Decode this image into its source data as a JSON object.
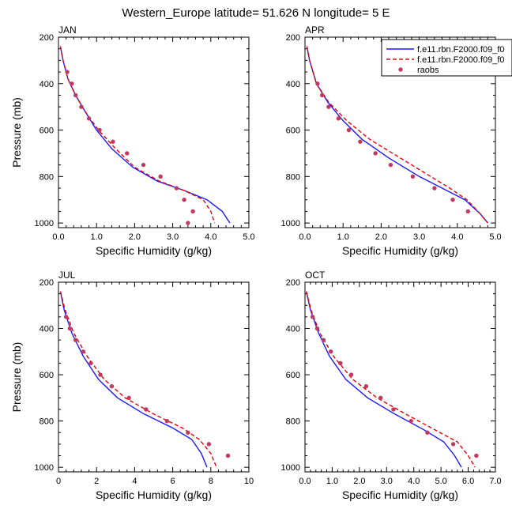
{
  "title": "Western_Europe  latitude= 51.626 N longitude= 5 E",
  "ylabel": "Pressure (mb)",
  "xlabel": "Specific Humidity (g/kg)",
  "legend": [
    {
      "name": "f.e11.rbn.F2000.f09_f0",
      "color": "#1a1aff",
      "style": "solid"
    },
    {
      "name": "f.e11.rbn.F2000.f09_f0",
      "color": "#e8000b",
      "style": "dashed"
    },
    {
      "name": "raobs",
      "color": "#c0395e",
      "style": "marker"
    }
  ],
  "chart_data": [
    {
      "type": "line",
      "panel": "JAN",
      "xlim": [
        0,
        5
      ],
      "xticks": [
        0.0,
        1.0,
        2.0,
        3.0,
        4.0,
        5.0
      ],
      "xtick_labels": [
        "0.0",
        "1.0",
        "2.0",
        "3.0",
        "4.0",
        "5.0"
      ],
      "ylim": [
        1020,
        200
      ],
      "yticks": [
        200,
        400,
        600,
        800,
        1000
      ],
      "series": [
        {
          "name": "model_solid",
          "x": [
            0.05,
            0.12,
            0.25,
            0.45,
            0.7,
            1.0,
            1.4,
            1.95,
            2.6,
            3.3,
            3.9,
            4.3,
            4.5
          ],
          "y": [
            240,
            300,
            380,
            450,
            520,
            600,
            680,
            760,
            820,
            860,
            900,
            950,
            1000
          ]
        },
        {
          "name": "model_dashed",
          "x": [
            0.05,
            0.12,
            0.25,
            0.45,
            0.7,
            1.05,
            1.5,
            2.0,
            2.65,
            3.3,
            3.8,
            4.0,
            4.1
          ],
          "y": [
            240,
            300,
            380,
            450,
            520,
            600,
            680,
            760,
            820,
            860,
            900,
            950,
            1000
          ]
        },
        {
          "name": "raobs",
          "x": [
            0.23,
            0.35,
            0.45,
            0.6,
            0.8,
            1.08,
            1.43,
            1.8,
            2.23,
            2.68,
            3.1,
            3.3,
            3.53,
            3.4
          ],
          "y": [
            350,
            400,
            450,
            500,
            550,
            600,
            650,
            700,
            750,
            800,
            850,
            900,
            950,
            1000
          ]
        }
      ]
    },
    {
      "type": "line",
      "panel": "APR",
      "xlim": [
        0,
        5
      ],
      "xticks": [
        0.0,
        1.0,
        2.0,
        3.0,
        4.0,
        5.0
      ],
      "xtick_labels": [
        "0.0",
        "1.0",
        "2.0",
        "3.0",
        "4.0",
        "5.0"
      ],
      "ylim": [
        1020,
        200
      ],
      "yticks": [
        200,
        400,
        600,
        800,
        1000
      ],
      "series": [
        {
          "name": "model_solid",
          "x": [
            0.05,
            0.12,
            0.3,
            0.6,
            1.0,
            1.5,
            2.2,
            3.0,
            3.6,
            4.2,
            4.6,
            4.8
          ],
          "y": [
            240,
            300,
            400,
            480,
            560,
            640,
            720,
            800,
            850,
            900,
            960,
            1000
          ]
        },
        {
          "name": "model_dashed",
          "x": [
            0.05,
            0.12,
            0.3,
            0.62,
            1.1,
            1.7,
            2.5,
            3.3,
            3.8,
            4.25,
            4.6,
            4.8
          ],
          "y": [
            240,
            300,
            400,
            480,
            560,
            640,
            720,
            800,
            850,
            900,
            960,
            1000
          ]
        },
        {
          "name": "raobs",
          "x": [
            0.33,
            0.45,
            0.62,
            0.88,
            1.15,
            1.45,
            1.85,
            2.25,
            2.83,
            3.4,
            3.88,
            4.28
          ],
          "y": [
            400,
            450,
            500,
            550,
            600,
            650,
            700,
            750,
            800,
            850,
            900,
            950
          ]
        }
      ]
    },
    {
      "type": "line",
      "panel": "JUL",
      "xlim": [
        0,
        10
      ],
      "xticks": [
        0,
        2,
        4,
        6,
        8,
        10
      ],
      "xtick_labels": [
        "0",
        "2",
        "4",
        "6",
        "8",
        "10"
      ],
      "ylim": [
        1020,
        200
      ],
      "yticks": [
        200,
        400,
        600,
        800,
        1000
      ],
      "series": [
        {
          "name": "model_solid",
          "x": [
            0.1,
            0.3,
            0.7,
            1.3,
            2.1,
            3.1,
            4.5,
            6.0,
            7.0,
            7.5,
            7.8
          ],
          "y": [
            240,
            320,
            420,
            520,
            620,
            700,
            770,
            830,
            880,
            940,
            1000
          ]
        },
        {
          "name": "model_dashed",
          "x": [
            0.1,
            0.35,
            0.8,
            1.5,
            2.4,
            3.5,
            5.0,
            6.5,
            7.4,
            8.0,
            8.3
          ],
          "y": [
            240,
            320,
            420,
            520,
            620,
            700,
            770,
            830,
            880,
            940,
            1000
          ]
        },
        {
          "name": "raobs",
          "x": [
            0.4,
            0.6,
            0.9,
            1.3,
            1.7,
            2.2,
            2.8,
            3.7,
            4.6,
            5.7,
            6.8,
            7.9,
            8.9
          ],
          "y": [
            350,
            400,
            450,
            500,
            550,
            600,
            650,
            700,
            750,
            800,
            850,
            900,
            950
          ]
        }
      ]
    },
    {
      "type": "line",
      "panel": "OCT",
      "xlim": [
        0,
        7
      ],
      "xticks": [
        0.0,
        1.0,
        2.0,
        3.0,
        4.0,
        5.0,
        6.0,
        7.0
      ],
      "xtick_labels": [
        "0.0",
        "1.0",
        "2.0",
        "3.0",
        "4.0",
        "5.0",
        "6.0",
        "7.0"
      ],
      "ylim": [
        1020,
        200
      ],
      "yticks": [
        200,
        400,
        600,
        800,
        1000
      ],
      "series": [
        {
          "name": "model_solid",
          "x": [
            0.05,
            0.2,
            0.5,
            0.9,
            1.5,
            2.3,
            3.3,
            4.4,
            5.1,
            5.5,
            5.75
          ],
          "y": [
            240,
            320,
            420,
            520,
            620,
            700,
            770,
            840,
            890,
            950,
            1000
          ]
        },
        {
          "name": "model_dashed",
          "x": [
            0.05,
            0.22,
            0.55,
            1.05,
            1.75,
            2.65,
            3.7,
            4.8,
            5.6,
            6.0,
            6.25
          ],
          "y": [
            240,
            320,
            420,
            520,
            620,
            700,
            770,
            840,
            890,
            950,
            1000
          ]
        },
        {
          "name": "raobs",
          "x": [
            0.28,
            0.45,
            0.68,
            0.95,
            1.3,
            1.7,
            2.25,
            2.78,
            3.25,
            3.9,
            4.5,
            5.45,
            6.3
          ],
          "y": [
            350,
            400,
            450,
            500,
            550,
            600,
            650,
            700,
            750,
            800,
            850,
            900,
            950
          ]
        }
      ]
    }
  ]
}
